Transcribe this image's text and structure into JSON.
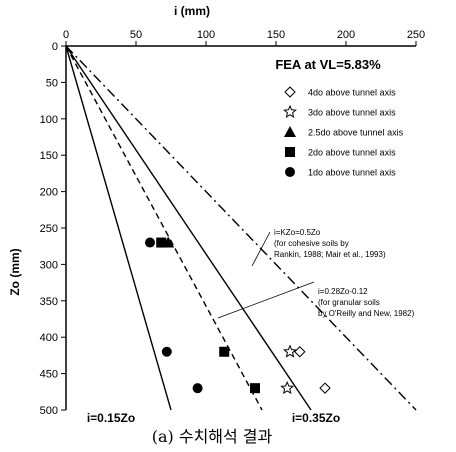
{
  "chart_data": {
    "type": "scatter",
    "title": "FEA at VL=5.83%",
    "caption": "(a) 수치해석 결과",
    "xlabel": "i (mm)",
    "ylabel": "Zo (mm)",
    "xlim": [
      0,
      250
    ],
    "ylim": [
      500,
      0
    ],
    "x_ticks": [
      0,
      50,
      100,
      150,
      200,
      250
    ],
    "y_ticks": [
      0,
      50,
      100,
      150,
      200,
      250,
      300,
      350,
      400,
      450,
      500
    ],
    "grid": false,
    "legend_position": "top-right",
    "series": [
      {
        "name": "4do above tunnel axis",
        "marker": "diamond-open",
        "points": [
          [
            167,
            420
          ],
          [
            185,
            470
          ]
        ]
      },
      {
        "name": "3do above tunnel axis",
        "marker": "star-open",
        "points": [
          [
            160,
            420
          ],
          [
            158,
            470
          ]
        ]
      },
      {
        "name": "2.5do above tunnel axis",
        "marker": "triangle-filled",
        "points": [
          [
            73,
            270
          ]
        ]
      },
      {
        "name": "2do above tunnel axis",
        "marker": "square-filled",
        "points": [
          [
            68,
            270
          ],
          [
            113,
            420
          ],
          [
            135,
            470
          ]
        ]
      },
      {
        "name": "1do above tunnel axis",
        "marker": "circle-filled",
        "points": [
          [
            60,
            270
          ],
          [
            72,
            420
          ],
          [
            94,
            470
          ]
        ]
      }
    ],
    "reference_lines": [
      {
        "label": "i=0.15Zo",
        "style": "solid",
        "slope": 0.15
      },
      {
        "label": "i=0.35Zo",
        "style": "solid",
        "slope": 0.35
      },
      {
        "label": "i=0.28Zo-0.12",
        "style": "dashed",
        "slope": 0.28
      },
      {
        "label": "i=KZo=0.5Zo",
        "style": "dash-dot",
        "slope": 0.5
      }
    ],
    "annotations": [
      {
        "lines": [
          "i=KZo=0.5Zo",
          "(for cohesive soils by",
          "Rankin, 1988; Mair et al., 1993)"
        ]
      },
      {
        "lines": [
          "i=0.28Zo-0.12",
          "(for granular soils",
          "by O'Reilly and New, 1982)"
        ]
      }
    ]
  }
}
